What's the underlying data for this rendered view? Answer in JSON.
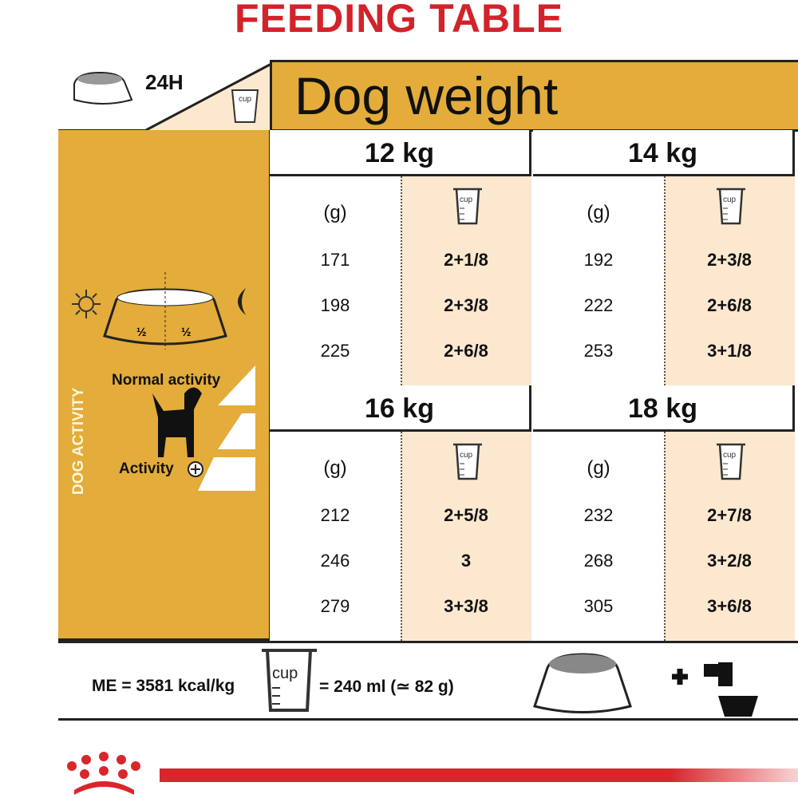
{
  "title": "FEEDING TABLE",
  "header": {
    "period": "24H",
    "cup_label": "cup",
    "column_title": "Dog weight"
  },
  "side": {
    "vertical_label": "DOG ACTIVITY",
    "half": "½",
    "normal_activity": "Normal activity",
    "activity_plus": "Activity"
  },
  "colors": {
    "accent_yellow": "#e3ac3b",
    "cream": "#fbe8cf",
    "brand_red": "#d2232a"
  },
  "unit_label": "(g)",
  "blocks": [
    {
      "weight": "12 kg",
      "rows": [
        {
          "g": "171",
          "cups": "2+1/8"
        },
        {
          "g": "198",
          "cups": "2+3/8"
        },
        {
          "g": "225",
          "cups": "2+6/8"
        }
      ]
    },
    {
      "weight": "14 kg",
      "rows": [
        {
          "g": "192",
          "cups": "2+3/8"
        },
        {
          "g": "222",
          "cups": "2+6/8"
        },
        {
          "g": "253",
          "cups": "3+1/8"
        }
      ]
    },
    {
      "weight": "16 kg",
      "rows": [
        {
          "g": "212",
          "cups": "2+5/8"
        },
        {
          "g": "246",
          "cups": "3"
        },
        {
          "g": "279",
          "cups": "3+3/8"
        }
      ]
    },
    {
      "weight": "18 kg",
      "rows": [
        {
          "g": "232",
          "cups": "2+7/8"
        },
        {
          "g": "268",
          "cups": "3+2/8"
        },
        {
          "g": "305",
          "cups": "3+6/8"
        }
      ]
    }
  ],
  "footer": {
    "energy": "ME = 3581 kcal/kg",
    "cup_equiv": "= 240 ml (≃ 82 g)"
  }
}
